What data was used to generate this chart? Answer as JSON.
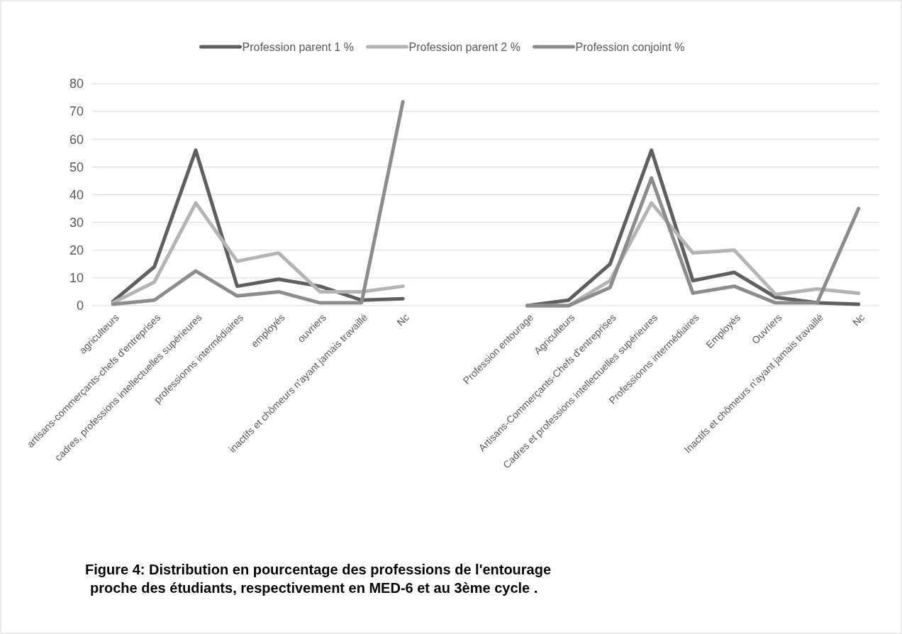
{
  "chart_data": {
    "type": "line",
    "title": "Figure 4: Distribution en pourcentage des professions de l'entourage proche des étudiants, respectivement en MED-6 et au 3ème cycle .",
    "categories": [
      "agriculteurs",
      "artisans-commerçants-chefs d'entreprises",
      "cadres, professions intellectuelles supérieures",
      "professionns intermédiaires",
      "employés",
      "ouvriers",
      "inactifs et chômeurs n'ayant jamais travaillé",
      "Nc",
      null,
      null,
      "Profession entourage",
      "Agriculteurs",
      "Artisans-Commerçants-Chefs d'entreprises",
      "Cadres et professions intellectuelles supérieures",
      "Professionns intermédiaires",
      "Employés",
      "Ouvriers",
      "Inactifs et chômeurs n'ayant jamais travaillé",
      "Nc"
    ],
    "series": [
      {
        "name": "Profession parent 1 %",
        "color": "#5f5f5f",
        "values": [
          1.5,
          14,
          56,
          7,
          9.5,
          7,
          2,
          2.5,
          null,
          null,
          0,
          2,
          15,
          56,
          9,
          12,
          3,
          1,
          0.5
        ]
      },
      {
        "name": "Profession parent 2 %",
        "color": "#b4b4b4",
        "values": [
          1,
          8.5,
          37,
          16,
          19,
          5,
          5,
          7,
          null,
          null,
          0,
          0,
          9,
          37,
          19,
          20,
          4,
          6,
          4.5
        ]
      },
      {
        "name": "Profession conjoint %",
        "color": "#8c8c8c",
        "values": [
          0.5,
          2,
          12.5,
          3.5,
          5,
          1,
          1,
          73.5,
          null,
          null,
          0,
          0,
          6.5,
          46,
          4.5,
          7,
          1,
          1,
          35
        ]
      }
    ],
    "ylim": [
      0,
      80
    ],
    "yticks": [
      0,
      10,
      20,
      30,
      40,
      50,
      60,
      70,
      80
    ],
    "grid": "y",
    "legend": "top",
    "marker": "none",
    "line_style": "solid"
  }
}
